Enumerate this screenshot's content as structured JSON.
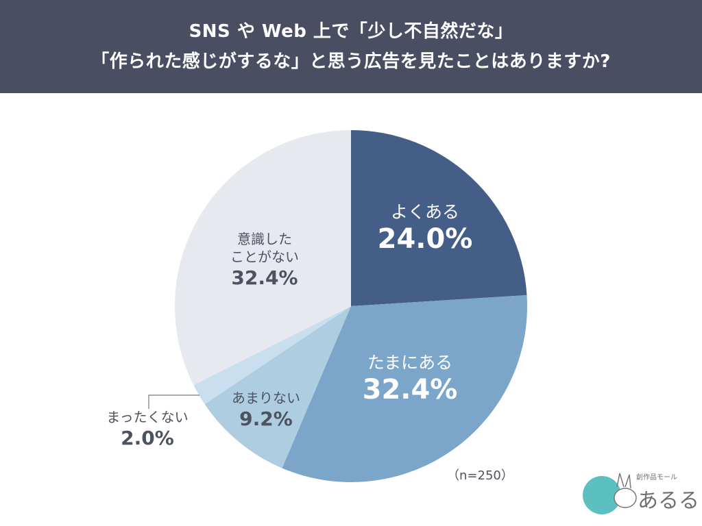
{
  "header": {
    "title_line1": "SNS や Web 上で「少し不自然だな」",
    "title_line2": "「作られた感じがするな」と思う広告を見たことはありますか?"
  },
  "chart_data": {
    "type": "pie",
    "title": "SNS や Web 上で「少し不自然だな」「作られた感じがするな」と思う広告を見たことはありますか?",
    "categories": [
      "よくある",
      "たまにある",
      "あまりない",
      "まったくない",
      "意識したことがない"
    ],
    "values": [
      24.0,
      32.4,
      9.2,
      2.0,
      32.4
    ],
    "colors": [
      "#455e88",
      "#7ba6c9",
      "#aecde0",
      "#c9dff0",
      "#e6e9ef"
    ],
    "start_angle": "12 o'clock",
    "direction": "clockwise",
    "unit": "%",
    "sample_size": "n=250"
  },
  "labels": {
    "often": {
      "name": "よくある",
      "pct": "24.0%"
    },
    "sometimes": {
      "name": "たまにある",
      "pct": "32.4%"
    },
    "rarely": {
      "name": "あまりない",
      "pct": "9.2%"
    },
    "never": {
      "name": "まったくない",
      "pct": "2.0%"
    },
    "unaware": {
      "name1": "意識した",
      "name2": "ことがない",
      "pct": "32.4%"
    }
  },
  "footnote": "（n=250）",
  "logo": {
    "sub": "創作品モール",
    "main": "あるる"
  }
}
